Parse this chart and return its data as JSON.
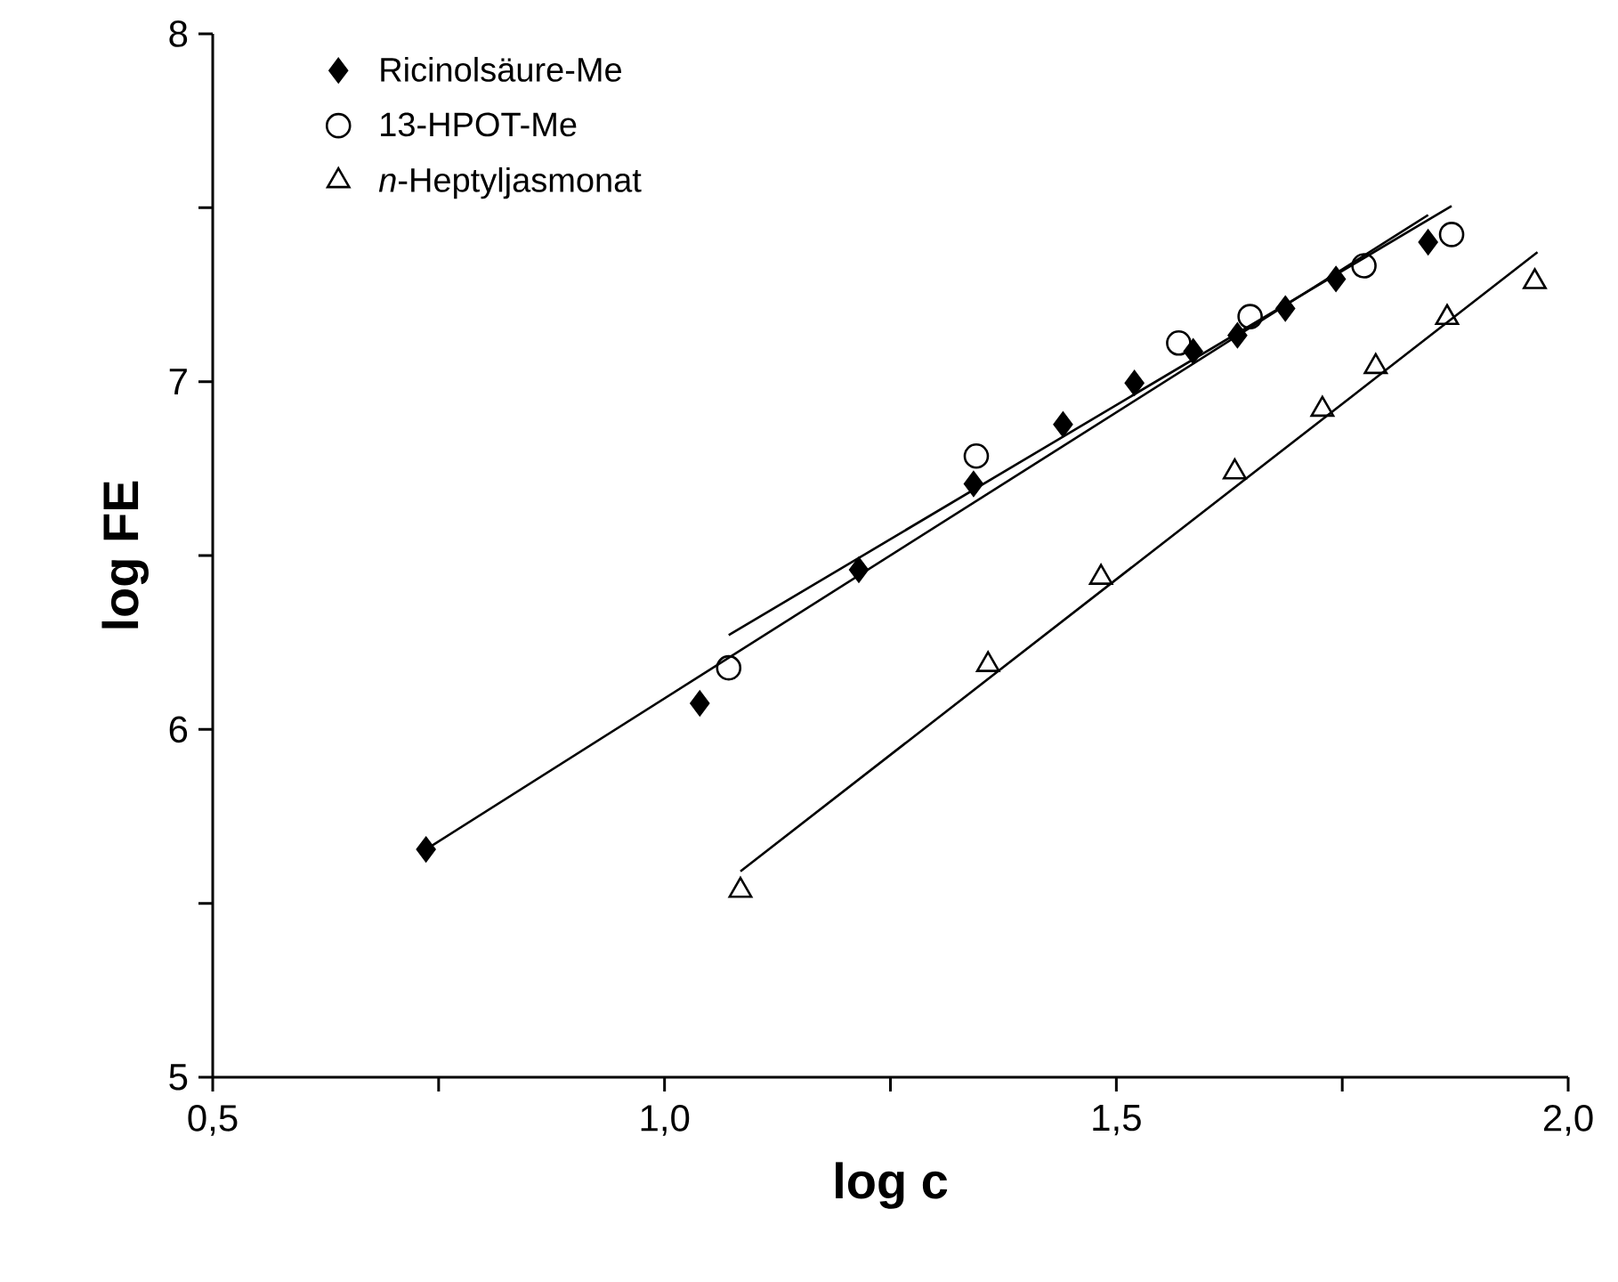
{
  "chart_data": {
    "type": "scatter",
    "xlabel": "log c",
    "ylabel": "log FE",
    "xlim": [
      0.5,
      2.0
    ],
    "ylim": [
      5,
      8
    ],
    "xticks": [
      {
        "value": 0.5,
        "label": "0,5"
      },
      {
        "value": 0.75,
        "label": null
      },
      {
        "value": 1.0,
        "label": "1,0"
      },
      {
        "value": 1.25,
        "label": null
      },
      {
        "value": 1.5,
        "label": "1,5"
      },
      {
        "value": 1.75,
        "label": null
      },
      {
        "value": 2.0,
        "label": "2,0"
      }
    ],
    "yticks": [
      5,
      {
        "value": 5.5,
        "label": null
      },
      6,
      {
        "value": 6.5,
        "label": null
      },
      7,
      {
        "value": 7.5,
        "label": null
      },
      8
    ],
    "grid": false,
    "legend": "top left",
    "series": [
      {
        "name": "Ricinolsäure-Me",
        "marker": "diamond",
        "color": "#000000",
        "x": [
          0.736,
          1.039,
          1.215,
          1.342,
          1.441,
          1.52,
          1.585,
          1.634,
          1.687,
          1.743,
          1.845
        ],
        "values": [
          5.655,
          6.075,
          6.459,
          6.706,
          6.877,
          6.996,
          7.087,
          7.133,
          7.21,
          7.295,
          7.401
        ]
      },
      {
        "name": "13-HPOT-Me",
        "marker": "circle",
        "color": "#000000",
        "x": [
          1.071,
          1.345,
          1.569,
          1.648,
          1.774,
          1.871
        ],
        "values": [
          6.177,
          6.786,
          7.111,
          7.187,
          7.333,
          7.423
        ]
      },
      {
        "name": "*n*-Heptyljasmonat",
        "marker": "triangle",
        "color": "#000000",
        "x": [
          1.084,
          1.358,
          1.483,
          1.631,
          1.728,
          1.787,
          1.866,
          1.963
        ],
        "values": [
          5.537,
          6.186,
          6.437,
          6.74,
          6.92,
          7.043,
          7.184,
          7.287
        ]
      },
      {
        "type": "line",
        "marker": "none",
        "line_style": "solid",
        "color": "#000000",
        "x": [
          0.736,
          1.845
        ],
        "values": [
          5.655,
          7.479
        ]
      },
      {
        "type": "line",
        "marker": "none",
        "line_style": "solid",
        "color": "#000000",
        "x": [
          1.071,
          1.871
        ],
        "values": [
          6.271,
          7.505
        ]
      },
      {
        "type": "line",
        "marker": "none",
        "line_style": "solid",
        "color": "#000000",
        "x": [
          1.084,
          1.966
        ],
        "values": [
          5.592,
          7.372
        ]
      }
    ]
  }
}
